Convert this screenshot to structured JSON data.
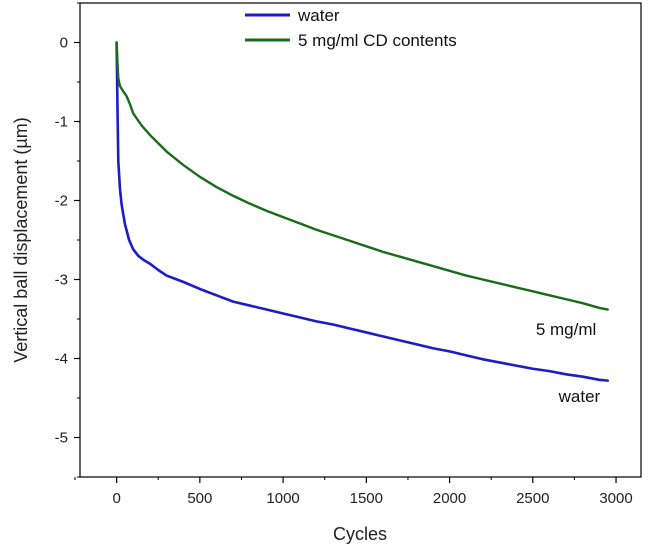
{
  "chart_data": {
    "type": "line",
    "xlabel": "Cycles",
    "ylabel": "Vertical ball displacement (µm)",
    "xlim": [
      -220,
      3150
    ],
    "ylim": [
      -5.5,
      0.5
    ],
    "xticks": [
      0,
      500,
      1000,
      1500,
      2000,
      2500,
      3000
    ],
    "xtick_labels": [
      "0",
      "500",
      "1000",
      "1500",
      "2000",
      "2500",
      "3000"
    ],
    "yticks": [
      0,
      -1,
      -2,
      -3,
      -4,
      -5
    ],
    "ytick_labels": [
      "0",
      "-1",
      "-2",
      "-3",
      "-4",
      "-5"
    ],
    "grid": false,
    "legend_position": "top-center",
    "series": [
      {
        "name": "water",
        "color": "#1c1cc8",
        "x": [
          0,
          5,
          10,
          20,
          30,
          50,
          75,
          100,
          130,
          160,
          200,
          250,
          300,
          400,
          500,
          600,
          700,
          800,
          900,
          1000,
          1100,
          1200,
          1300,
          1400,
          1500,
          1600,
          1700,
          1800,
          1900,
          2000,
          2100,
          2200,
          2300,
          2400,
          2500,
          2600,
          2700,
          2800,
          2900,
          2950
        ],
        "y": [
          0,
          -0.8,
          -1.5,
          -1.85,
          -2.05,
          -2.3,
          -2.5,
          -2.62,
          -2.7,
          -2.75,
          -2.8,
          -2.88,
          -2.95,
          -3.03,
          -3.12,
          -3.2,
          -3.28,
          -3.33,
          -3.38,
          -3.43,
          -3.48,
          -3.53,
          -3.57,
          -3.62,
          -3.67,
          -3.72,
          -3.77,
          -3.82,
          -3.87,
          -3.91,
          -3.96,
          -4.01,
          -4.05,
          -4.09,
          -4.13,
          -4.16,
          -4.2,
          -4.23,
          -4.27,
          -4.28
        ]
      },
      {
        "name": "5 mg/ml CD contents",
        "color": "#1a6b1a",
        "x": [
          0,
          5,
          10,
          20,
          40,
          60,
          80,
          100,
          150,
          200,
          300,
          400,
          500,
          600,
          700,
          800,
          900,
          1000,
          1100,
          1200,
          1300,
          1400,
          1500,
          1600,
          1700,
          1800,
          1900,
          2000,
          2100,
          2200,
          2300,
          2400,
          2500,
          2600,
          2700,
          2800,
          2900,
          2950
        ],
        "y": [
          0,
          -0.25,
          -0.45,
          -0.55,
          -0.62,
          -0.68,
          -0.78,
          -0.9,
          -1.05,
          -1.17,
          -1.38,
          -1.55,
          -1.7,
          -1.83,
          -1.94,
          -2.04,
          -2.13,
          -2.21,
          -2.29,
          -2.37,
          -2.44,
          -2.51,
          -2.58,
          -2.65,
          -2.71,
          -2.77,
          -2.83,
          -2.89,
          -2.95,
          -3.0,
          -3.05,
          -3.1,
          -3.15,
          -3.2,
          -3.25,
          -3.3,
          -3.36,
          -3.38
        ]
      }
    ],
    "annotations": [
      {
        "text": "5 mg/ml",
        "x": 2700,
        "y": -3.7
      },
      {
        "text": "water",
        "x": 2780,
        "y": -4.55
      }
    ]
  }
}
